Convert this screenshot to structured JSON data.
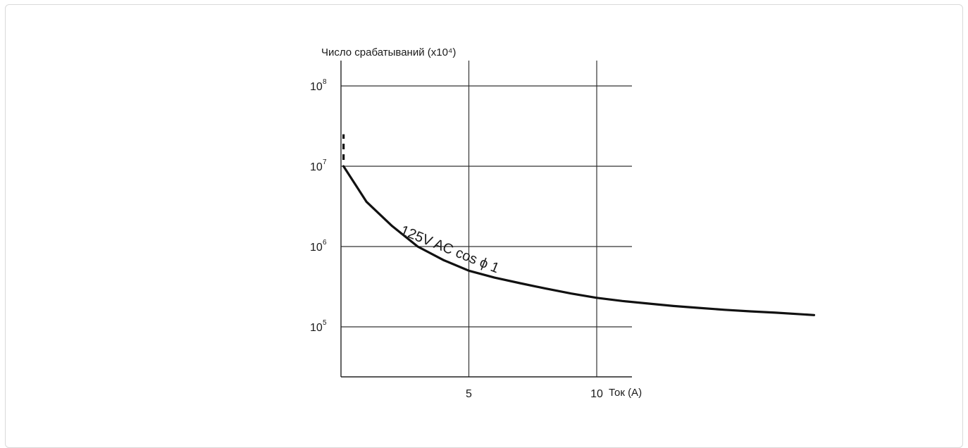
{
  "chart_data": {
    "type": "line",
    "title": "",
    "ylabel": "Число срабатываний (x10⁴)",
    "xlabel": "Ток (А)",
    "y_scale": "log",
    "ylim": [
      30000,
      300000000
    ],
    "y_ticks": [
      {
        "value": 100000,
        "base": "10",
        "exp": "5"
      },
      {
        "value": 1000000,
        "base": "10",
        "exp": "6"
      },
      {
        "value": 10000000,
        "base": "10",
        "exp": "7"
      },
      {
        "value": 100000000,
        "base": "10",
        "exp": "8"
      }
    ],
    "xlim": [
      0,
      19
    ],
    "x_ticks": [
      {
        "value": 5,
        "label": "5"
      },
      {
        "value": 10,
        "label": "10"
      }
    ],
    "grid": true,
    "annotation": "125V AC cos ϕ 1",
    "series": [
      {
        "name": "",
        "x": [
          0.1,
          1,
          2,
          3,
          4,
          5,
          6,
          7,
          8,
          9,
          10,
          11,
          12,
          13,
          14,
          15,
          16,
          17,
          18.5
        ],
        "y": [
          10000000,
          3600000,
          1800000,
          1000000,
          680000,
          500000,
          410000,
          350000,
          300000,
          260000,
          230000,
          210000,
          195000,
          182000,
          172000,
          163000,
          156000,
          150000,
          140000
        ],
        "dashed_start": {
          "x": 0.1,
          "y": [
            12000000,
            25000000
          ]
        }
      }
    ]
  }
}
